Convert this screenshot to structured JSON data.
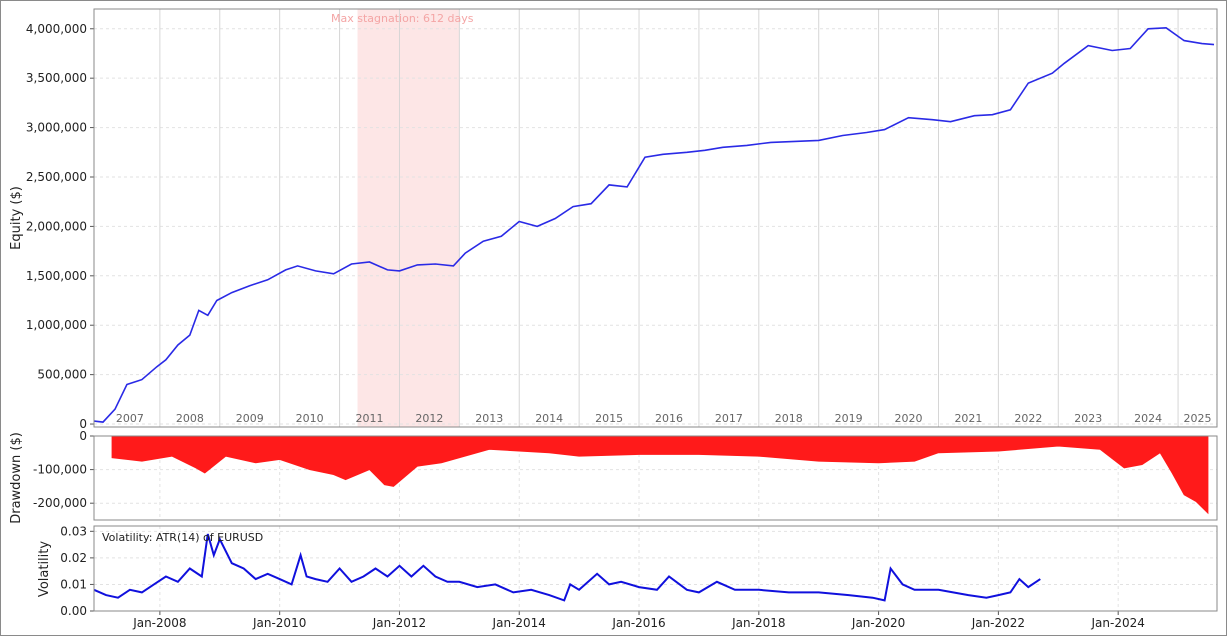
{
  "chart_data": [
    {
      "type": "line",
      "ylabel": "Equity ($)",
      "ylim": [
        -30000,
        4200000
      ],
      "yticks": [
        0,
        500000,
        1000000,
        1500000,
        2000000,
        2500000,
        3000000,
        3500000,
        4000000
      ],
      "ytick_labels": [
        "0",
        "500,000",
        "1,000,000",
        "1,500,000",
        "2,000,000",
        "2,500,000",
        "3,000,000",
        "3,500,000",
        "4,000,000"
      ],
      "year_labels": [
        "2007",
        "2008",
        "2009",
        "2010",
        "2011",
        "2012",
        "2013",
        "2014",
        "2015",
        "2016",
        "2017",
        "2018",
        "2019",
        "2020",
        "2021",
        "2022",
        "2023",
        "2024",
        "2025"
      ],
      "annotation": "Max stagnation: 612 days",
      "stagnation_range": [
        2011.3,
        2013.0
      ],
      "grid": true,
      "line_color": "#2a2ae6",
      "stagnation_color": "#fde6e6",
      "annotation_color": "#f4a5a5",
      "series": [
        {
          "x": [
            2006.9,
            2007.05,
            2007.25,
            2007.45,
            2007.7,
            2007.95,
            2008.1,
            2008.3,
            2008.5,
            2008.65,
            2008.8,
            2008.95,
            2009.2,
            2009.5,
            2009.8,
            2010.1,
            2010.3,
            2010.6,
            2010.9,
            2011.2,
            2011.5,
            2011.8,
            2012.0,
            2012.3,
            2012.6,
            2012.9,
            2013.1,
            2013.4,
            2013.7,
            2014.0,
            2014.3,
            2014.6,
            2014.9,
            2015.2,
            2015.5,
            2015.8,
            2016.1,
            2016.4,
            2016.8,
            2017.1,
            2017.4,
            2017.8,
            2018.2,
            2018.6,
            2019.0,
            2019.4,
            2019.8,
            2020.1,
            2020.5,
            2020.9,
            2021.2,
            2021.6,
            2021.9,
            2022.2,
            2022.5,
            2022.9,
            2023.1,
            2023.5,
            2023.9,
            2024.2,
            2024.5,
            2024.8,
            2025.1,
            2025.4,
            2025.6
          ],
          "y": [
            30000,
            20000,
            150000,
            400000,
            450000,
            580000,
            650000,
            800000,
            900000,
            1150000,
            1100000,
            1250000,
            1330000,
            1400000,
            1460000,
            1560000,
            1600000,
            1550000,
            1520000,
            1620000,
            1640000,
            1560000,
            1550000,
            1610000,
            1620000,
            1600000,
            1730000,
            1850000,
            1900000,
            2050000,
            2000000,
            2080000,
            2200000,
            2230000,
            2420000,
            2400000,
            2700000,
            2730000,
            2750000,
            2770000,
            2800000,
            2820000,
            2850000,
            2860000,
            2870000,
            2920000,
            2950000,
            2980000,
            3100000,
            3080000,
            3060000,
            3120000,
            3130000,
            3180000,
            3450000,
            3550000,
            3650000,
            3830000,
            3780000,
            3800000,
            4000000,
            4010000,
            3880000,
            3850000,
            3840000
          ]
        }
      ]
    },
    {
      "type": "area",
      "ylabel": "Drawdown ($)",
      "ylim": [
        -250000,
        0
      ],
      "yticks": [
        0,
        -100000,
        -200000
      ],
      "ytick_labels": [
        "0",
        "-100,000",
        "-200,000"
      ],
      "grid": true,
      "fill_color": "#ff1a1a",
      "series": [
        {
          "x": [
            2007.2,
            2007.7,
            2008.2,
            2008.6,
            2008.75,
            2009.1,
            2009.6,
            2010.0,
            2010.5,
            2010.9,
            2011.1,
            2011.5,
            2011.75,
            2011.9,
            2012.3,
            2012.7,
            2013.5,
            2014.5,
            2015.0,
            2016.0,
            2017.0,
            2018.0,
            2019.0,
            2020.0,
            2020.6,
            2021.0,
            2022.0,
            2023.0,
            2023.7,
            2024.1,
            2024.4,
            2024.7,
            2024.9,
            2025.1,
            2025.3,
            2025.5
          ],
          "y": [
            -65000,
            -75000,
            -60000,
            -95000,
            -110000,
            -60000,
            -80000,
            -70000,
            -100000,
            -115000,
            -130000,
            -100000,
            -145000,
            -150000,
            -90000,
            -80000,
            -40000,
            -50000,
            -60000,
            -55000,
            -55000,
            -60000,
            -75000,
            -80000,
            -75000,
            -50000,
            -45000,
            -30000,
            -40000,
            -95000,
            -85000,
            -50000,
            -110000,
            -175000,
            -195000,
            -230000
          ]
        }
      ]
    },
    {
      "type": "line",
      "ylabel": "Volatility",
      "legend": "Volatility: ATR(14) of EURUSD",
      "ylim": [
        0.0,
        0.032
      ],
      "yticks": [
        0.0,
        0.01,
        0.02,
        0.03
      ],
      "ytick_labels": [
        "0.00",
        "0.01",
        "0.02",
        "0.03"
      ],
      "xtick_labels": [
        "Jan-2008",
        "Jan-2010",
        "Jan-2012",
        "Jan-2014",
        "Jan-2016",
        "Jan-2018",
        "Jan-2020",
        "Jan-2022",
        "Jan-2024"
      ],
      "xtick_years": [
        2008,
        2010,
        2012,
        2014,
        2016,
        2018,
        2020,
        2022,
        2024
      ],
      "grid": true,
      "line_color": "#1010dd",
      "series": [
        {
          "x": [
            2006.9,
            2007.1,
            2007.3,
            2007.5,
            2007.7,
            2007.9,
            2008.1,
            2008.3,
            2008.5,
            2008.7,
            2008.8,
            2008.9,
            2009.0,
            2009.2,
            2009.4,
            2009.6,
            2009.8,
            2010.0,
            2010.2,
            2010.35,
            2010.45,
            2010.6,
            2010.8,
            2011.0,
            2011.2,
            2011.4,
            2011.6,
            2011.8,
            2012.0,
            2012.2,
            2012.4,
            2012.6,
            2012.8,
            2013.0,
            2013.3,
            2013.6,
            2013.9,
            2014.2,
            2014.5,
            2014.75,
            2014.85,
            2015.0,
            2015.3,
            2015.5,
            2015.7,
            2016.0,
            2016.3,
            2016.5,
            2016.8,
            2017.0,
            2017.3,
            2017.6,
            2018.0,
            2018.5,
            2019.0,
            2019.5,
            2019.9,
            2020.1,
            2020.2,
            2020.4,
            2020.6,
            2021.0,
            2021.5,
            2021.8,
            2022.0,
            2022.2,
            2022.35,
            2022.5,
            2022.7
          ],
          "y": [
            0.008,
            0.006,
            0.005,
            0.008,
            0.007,
            0.01,
            0.013,
            0.011,
            0.016,
            0.013,
            0.029,
            0.021,
            0.027,
            0.018,
            0.016,
            0.012,
            0.014,
            0.012,
            0.01,
            0.021,
            0.013,
            0.012,
            0.011,
            0.016,
            0.011,
            0.013,
            0.016,
            0.013,
            0.017,
            0.013,
            0.017,
            0.013,
            0.011,
            0.011,
            0.009,
            0.01,
            0.007,
            0.008,
            0.006,
            0.004,
            0.01,
            0.008,
            0.014,
            0.01,
            0.011,
            0.009,
            0.008,
            0.013,
            0.008,
            0.007,
            0.011,
            0.008,
            0.008,
            0.007,
            0.007,
            0.006,
            0.005,
            0.004,
            0.016,
            0.01,
            0.008,
            0.008,
            0.006,
            0.005,
            0.006,
            0.007,
            0.012,
            0.009,
            0.012
          ]
        }
      ]
    }
  ]
}
